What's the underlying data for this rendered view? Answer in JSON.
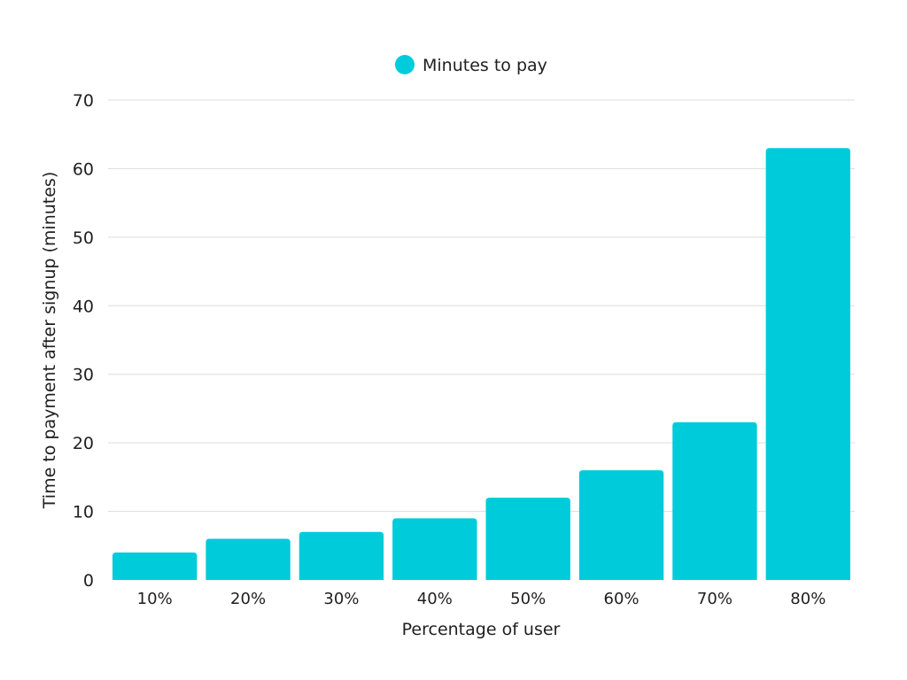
{
  "chart_data": {
    "type": "bar",
    "categories": [
      "10%",
      "20%",
      "30%",
      "40%",
      "50%",
      "60%",
      "70%",
      "80%"
    ],
    "series": [
      {
        "name": "Minutes to pay",
        "values": [
          4,
          6,
          7,
          9,
          12,
          16,
          23,
          63
        ],
        "color": "#00CBDB"
      }
    ],
    "xlabel": "Percentage of user",
    "ylabel": "Time to payment after signup (minutes)",
    "ylim": [
      0,
      70
    ],
    "yticks": [
      0,
      10,
      20,
      30,
      40,
      50,
      60,
      70
    ],
    "grid": true,
    "legend_position": "top-center"
  }
}
